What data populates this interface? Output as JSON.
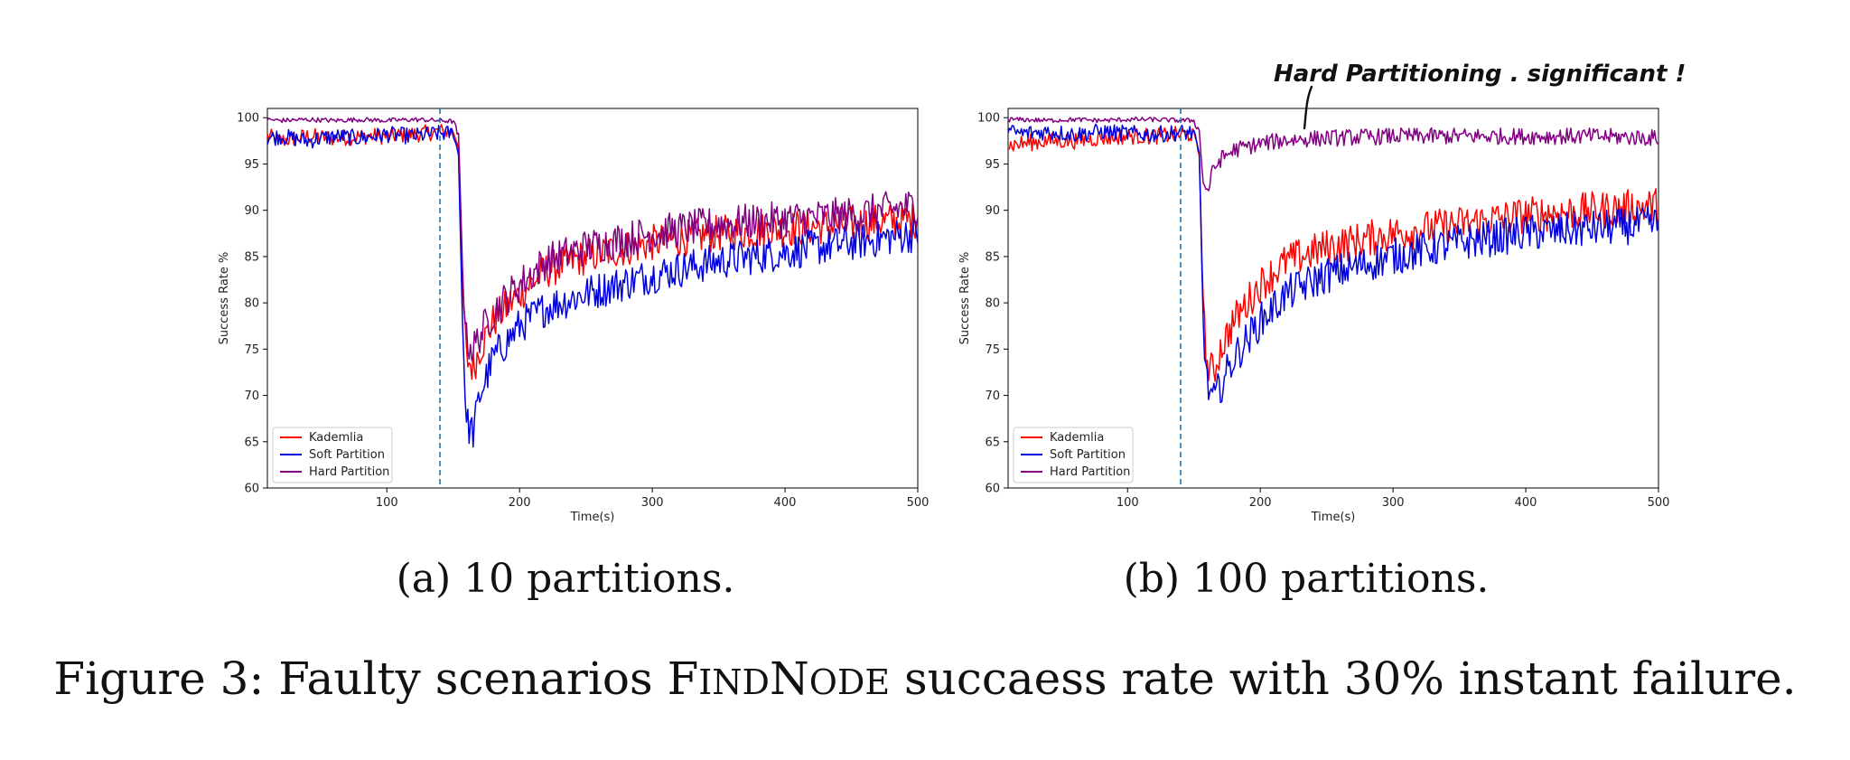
{
  "chart_data": [
    {
      "type": "line",
      "panel": "a",
      "subcaption": "(a) 10 partitions.",
      "xlabel": "Time(s)",
      "ylabel": "Success Rate %",
      "xlim": [
        10,
        500
      ],
      "ylim": [
        60,
        101
      ],
      "xticks": [
        100,
        200,
        300,
        400,
        500
      ],
      "yticks": [
        60,
        65,
        70,
        75,
        80,
        85,
        90,
        95,
        100
      ],
      "vline_x": 140,
      "legend": "lower-left",
      "grid": false,
      "series": [
        {
          "name": "Kademlia",
          "color": "#ff0000",
          "x": [
            10,
            20,
            40,
            60,
            80,
            100,
            120,
            140,
            150,
            154,
            157,
            160,
            165,
            170,
            180,
            200,
            220,
            250,
            300,
            350,
            400,
            450,
            500
          ],
          "y": [
            98,
            97.5,
            98,
            97.8,
            98,
            98,
            98.2,
            98.5,
            98.5,
            97,
            82,
            74,
            73,
            75,
            78,
            81,
            83.5,
            85,
            86.5,
            87.5,
            88,
            88.5,
            89
          ]
        },
        {
          "name": "Soft Partition",
          "color": "#0000dd",
          "x": [
            10,
            20,
            40,
            60,
            80,
            100,
            120,
            140,
            150,
            154,
            157,
            160,
            165,
            170,
            180,
            200,
            220,
            250,
            300,
            350,
            400,
            450,
            500
          ],
          "y": [
            97.8,
            98,
            97.5,
            98,
            97.8,
            98.2,
            98,
            98.3,
            98.3,
            96,
            78,
            67,
            66,
            70,
            74,
            77.5,
            79.5,
            81,
            83,
            84.5,
            85.5,
            86.5,
            87.5
          ]
        },
        {
          "name": "Hard Partition",
          "color": "#800080",
          "x": [
            10,
            20,
            40,
            60,
            80,
            100,
            120,
            140,
            150,
            154,
            157,
            160,
            165,
            170,
            180,
            200,
            220,
            250,
            300,
            350,
            400,
            450,
            500
          ],
          "y": [
            99.8,
            99.7,
            99.8,
            99.7,
            99.8,
            99.7,
            99.8,
            99.7,
            99.6,
            98,
            84,
            76,
            75,
            76.5,
            79,
            82,
            84.5,
            86,
            87.5,
            88.5,
            89,
            89.5,
            90.5
          ]
        }
      ]
    },
    {
      "type": "line",
      "panel": "b",
      "subcaption": "(b) 100 partitions.",
      "xlabel": "Time(s)",
      "ylabel": "Success Rate %",
      "xlim": [
        10,
        500
      ],
      "ylim": [
        60,
        101
      ],
      "xticks": [
        100,
        200,
        300,
        400,
        500
      ],
      "yticks": [
        60,
        65,
        70,
        75,
        80,
        85,
        90,
        95,
        100
      ],
      "vline_x": 140,
      "legend": "lower-left",
      "grid": false,
      "annotation": "Hard Partitioning . significant !",
      "series": [
        {
          "name": "Kademlia",
          "color": "#ff0000",
          "x": [
            10,
            20,
            40,
            60,
            80,
            100,
            120,
            140,
            150,
            154,
            157,
            160,
            165,
            170,
            180,
            200,
            220,
            250,
            300,
            350,
            400,
            450,
            500
          ],
          "y": [
            97,
            97.2,
            97.5,
            97.5,
            97.8,
            98,
            98,
            98.2,
            98.2,
            96,
            80,
            73,
            72.5,
            75,
            78,
            82,
            84.5,
            86,
            87.5,
            88.5,
            89.5,
            90,
            90.5
          ]
        },
        {
          "name": "Soft Partition",
          "color": "#0000dd",
          "x": [
            10,
            20,
            40,
            60,
            80,
            100,
            120,
            140,
            150,
            154,
            157,
            160,
            165,
            170,
            180,
            200,
            220,
            250,
            300,
            350,
            400,
            450,
            500
          ],
          "y": [
            98.5,
            98.3,
            98.5,
            98.2,
            98.5,
            98.3,
            98.2,
            98.4,
            98.4,
            96,
            78,
            71,
            69.5,
            71,
            74,
            78,
            81,
            83,
            85,
            86.5,
            87.5,
            88,
            88.5
          ]
        },
        {
          "name": "Hard Partition",
          "color": "#800080",
          "x": [
            10,
            20,
            40,
            60,
            80,
            100,
            120,
            140,
            150,
            154,
            157,
            160,
            165,
            170,
            180,
            200,
            220,
            250,
            300,
            350,
            400,
            450,
            500
          ],
          "y": [
            99.8,
            99.8,
            99.7,
            99.8,
            99.7,
            99.8,
            99.8,
            99.7,
            99.7,
            98.5,
            93,
            92,
            94.5,
            95.5,
            96.5,
            97.2,
            97.6,
            97.8,
            98,
            98,
            98,
            98,
            97.8
          ]
        }
      ]
    }
  ],
  "caption": {
    "prefix": "Figure 3: Faulty scenarios ",
    "f1": "F",
    "ind": "IND",
    "n1": "N",
    "ode": "ODE",
    "suffix": " succaess rate with 30% instant failure."
  }
}
